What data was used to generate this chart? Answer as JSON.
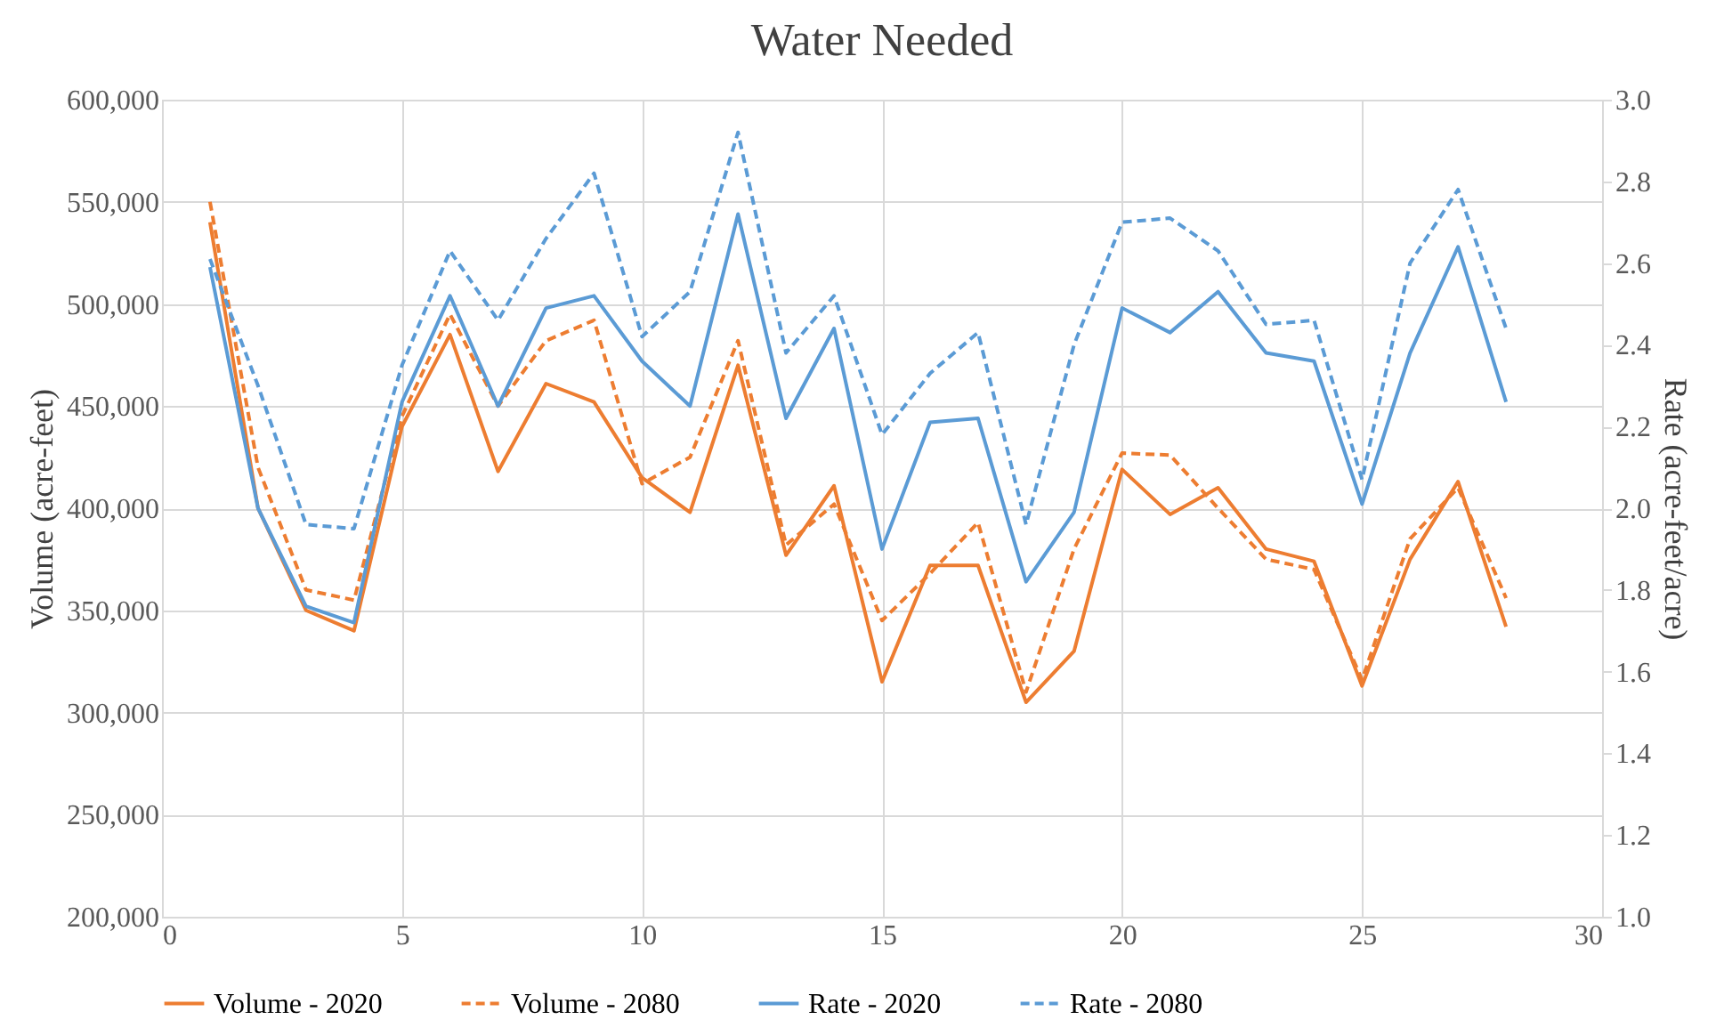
{
  "chart_data": {
    "type": "line",
    "title": "Water Needed",
    "ylabel": "Volume (acre-feet)",
    "y2label": "Rate (acre-feet/acre)",
    "x": [
      1,
      2,
      3,
      4,
      5,
      6,
      7,
      8,
      9,
      10,
      11,
      12,
      13,
      14,
      15,
      16,
      17,
      18,
      19,
      20,
      21,
      22,
      23,
      24,
      25,
      26,
      27,
      28
    ],
    "series": [
      {
        "name": "Volume - 2020",
        "color": "#ed7d31",
        "line_style": "solid",
        "values": [
          540000,
          400000,
          350000,
          340000,
          440000,
          485000,
          418000,
          461000,
          452000,
          415000,
          398000,
          470000,
          377000,
          411000,
          315000,
          372000,
          372000,
          305000,
          330000,
          419000,
          397000,
          410000,
          380000,
          374000,
          313000,
          375000,
          413000,
          342000
        ]
      },
      {
        "name": "Volume - 2080",
        "color": "#ed7d31",
        "line_style": "dashed",
        "values": [
          550000,
          420000,
          360000,
          355000,
          445000,
          495000,
          450000,
          482000,
          492000,
          412000,
          425000,
          482000,
          382000,
          402000,
          345000,
          368000,
          393000,
          310000,
          380000,
          427000,
          426000,
          400000,
          375000,
          370000,
          316000,
          385000,
          410000,
          356000
        ]
      },
      {
        "name": "Rate - 2020",
        "color": "#5b9bd5",
        "line_style": "solid",
        "axis": "y2",
        "values": [
          2.59,
          2.0,
          1.76,
          1.72,
          2.26,
          2.52,
          2.25,
          2.49,
          2.52,
          2.36,
          2.25,
          2.72,
          2.22,
          2.44,
          1.9,
          2.21,
          2.22,
          1.82,
          1.99,
          2.49,
          2.43,
          2.53,
          2.38,
          2.36,
          2.01,
          2.38,
          2.64,
          2.26
        ]
      },
      {
        "name": "Rate - 2080",
        "color": "#5b9bd5",
        "line_style": "dashed",
        "axis": "y2",
        "values": [
          2.61,
          2.3,
          1.96,
          1.95,
          2.35,
          2.63,
          2.46,
          2.66,
          2.82,
          2.42,
          2.53,
          2.92,
          2.38,
          2.52,
          2.18,
          2.33,
          2.43,
          1.96,
          2.4,
          2.7,
          2.71,
          2.63,
          2.45,
          2.46,
          2.07,
          2.6,
          2.78,
          2.44
        ]
      }
    ],
    "xlim": [
      0,
      30
    ],
    "xticks": [
      0,
      5,
      10,
      15,
      20,
      25,
      30
    ],
    "ylim": [
      200000,
      600000
    ],
    "yticks": [
      {
        "value": 200000,
        "label": "200,000"
      },
      {
        "value": 250000,
        "label": "250,000"
      },
      {
        "value": 300000,
        "label": "300,000"
      },
      {
        "value": 350000,
        "label": "350,000"
      },
      {
        "value": 400000,
        "label": "400,000"
      },
      {
        "value": 450000,
        "label": "450,000"
      },
      {
        "value": 500000,
        "label": "500,000"
      },
      {
        "value": 550000,
        "label": "550,000"
      },
      {
        "value": 600000,
        "label": "600,000"
      }
    ],
    "y2lim": [
      1.0,
      3.0
    ],
    "y2ticks": [
      {
        "value": 1.0,
        "label": "1.0"
      },
      {
        "value": 1.2,
        "label": "1.2"
      },
      {
        "value": 1.4,
        "label": "1.4"
      },
      {
        "value": 1.6,
        "label": "1.6"
      },
      {
        "value": 1.8,
        "label": "1.8"
      },
      {
        "value": 2.0,
        "label": "2.0"
      },
      {
        "value": 2.2,
        "label": "2.2"
      },
      {
        "value": 2.4,
        "label": "2.4"
      },
      {
        "value": 2.6,
        "label": "2.6"
      },
      {
        "value": 2.8,
        "label": "2.8"
      },
      {
        "value": 3.0,
        "label": "3.0"
      }
    ],
    "grid": true,
    "legend": "bottom",
    "marker": "none"
  }
}
